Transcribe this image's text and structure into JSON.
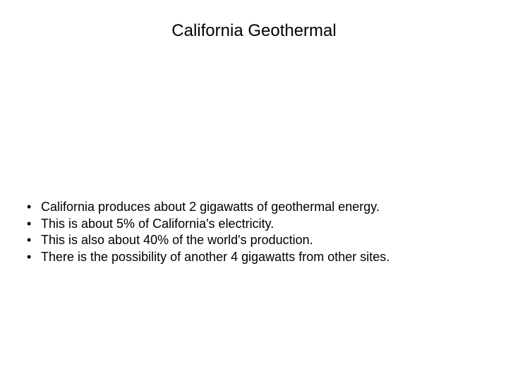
{
  "slide": {
    "title": "California Geothermal",
    "title_fontsize": 24,
    "title_color": "#000000",
    "body_fontsize": 18,
    "body_color": "#000000",
    "background_color": "#ffffff",
    "bullets": [
      "California produces about 2 gigawatts of geothermal energy.",
      "This is about 5% of California's electricity.",
      "This is also about 40% of the world's production.",
      "There is the possibility of another 4 gigawatts from other sites."
    ]
  }
}
